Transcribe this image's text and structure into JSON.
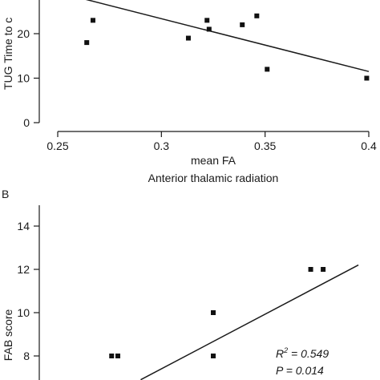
{
  "chart_data": [
    {
      "type": "scatter",
      "panel_label": "",
      "title": "",
      "subtitle": "Anterior thalamic radiation",
      "xlabel": "mean FA",
      "ylabel": "TUG Time to c",
      "xlim": [
        0.25,
        0.4
      ],
      "ylim": [
        0,
        28
      ],
      "xticks": [
        "0.25",
        "0.3",
        "0.35",
        "0.4"
      ],
      "yticks": [
        "0",
        "10",
        "20"
      ],
      "grid": false,
      "points": [
        {
          "x": 0.264,
          "y": 18
        },
        {
          "x": 0.267,
          "y": 23
        },
        {
          "x": 0.313,
          "y": 19
        },
        {
          "x": 0.322,
          "y": 23
        },
        {
          "x": 0.323,
          "y": 21
        },
        {
          "x": 0.339,
          "y": 22
        },
        {
          "x": 0.346,
          "y": 24
        },
        {
          "x": 0.351,
          "y": 12
        },
        {
          "x": 0.399,
          "y": 10
        }
      ],
      "fit_line": [
        {
          "x": 0.261,
          "y": 28
        },
        {
          "x": 0.4,
          "y": 11.5
        }
      ]
    },
    {
      "type": "scatter",
      "panel_label": "B",
      "title": "",
      "xlabel": "",
      "ylabel": "FAB score",
      "xlim": [
        0.25,
        0.4
      ],
      "ylim": [
        7,
        15
      ],
      "xticks": [],
      "yticks": [
        "8",
        "10",
        "12",
        "14"
      ],
      "grid": false,
      "points": [
        {
          "x": 0.276,
          "y": 8
        },
        {
          "x": 0.279,
          "y": 8
        },
        {
          "x": 0.325,
          "y": 8
        },
        {
          "x": 0.325,
          "y": 10
        },
        {
          "x": 0.372,
          "y": 12
        },
        {
          "x": 0.378,
          "y": 12
        }
      ],
      "fit_line": [
        {
          "x": 0.29,
          "y": 6.9
        },
        {
          "x": 0.395,
          "y": 12.2
        }
      ],
      "annotations": {
        "r2_prefix": "R",
        "r2_superscript": "2",
        "r2_value": " = 0.549",
        "p_text": "P = 0.014"
      }
    }
  ]
}
